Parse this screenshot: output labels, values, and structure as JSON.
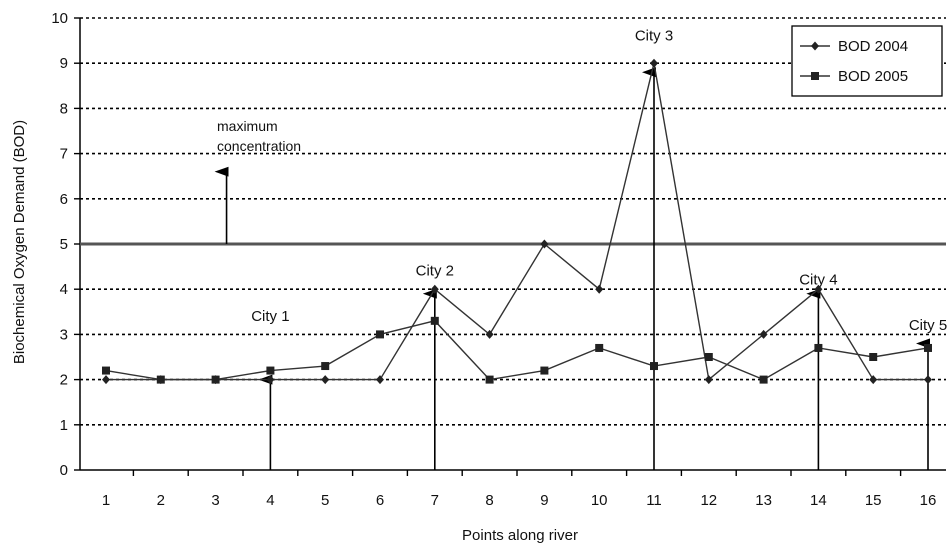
{
  "chart_data": {
    "type": "line",
    "xlabel": "Points along river",
    "ylabel": "Biochemical  Oxygen Demand (BOD)",
    "x": [
      1,
      2,
      3,
      4,
      5,
      6,
      7,
      8,
      9,
      10,
      11,
      12,
      13,
      14,
      15,
      16
    ],
    "ylim": [
      0,
      10
    ],
    "yticks": [
      0,
      1,
      2,
      3,
      4,
      5,
      6,
      7,
      8,
      9,
      10
    ],
    "grid": "horizontal dashed",
    "legend_position": "top-right",
    "series": [
      {
        "name": "BOD 2004",
        "marker": "diamond",
        "values": [
          2,
          2,
          2,
          2,
          2,
          2,
          4,
          3,
          5,
          4,
          9,
          2,
          3,
          4,
          2,
          2
        ]
      },
      {
        "name": "BOD 2005",
        "marker": "square",
        "values": [
          2.2,
          2,
          2,
          2.2,
          2.3,
          3,
          3.3,
          2,
          2.2,
          2.7,
          2.3,
          2.5,
          2,
          2.7,
          2.5,
          2.7
        ]
      }
    ],
    "reference_line": {
      "y": 5
    },
    "annotations": [
      {
        "text": "maximum\nconcentration",
        "x": 3.2,
        "arrow_from": 5,
        "arrow_to": 6.6
      },
      {
        "text": "City 1",
        "x": 4,
        "label_y": 3.3,
        "arrow_to": 2.0
      },
      {
        "text": "City 2",
        "x": 7,
        "label_y": 4.3,
        "arrow_to": 3.9
      },
      {
        "text": "City 3",
        "x": 11,
        "label_y": 9.5,
        "arrow_to": 8.8
      },
      {
        "text": "City 4",
        "x": 14,
        "label_y": 4.1,
        "arrow_to": 3.9
      },
      {
        "text": "City 5",
        "x": 16,
        "label_y": 3.1,
        "arrow_to": 2.8
      }
    ]
  }
}
